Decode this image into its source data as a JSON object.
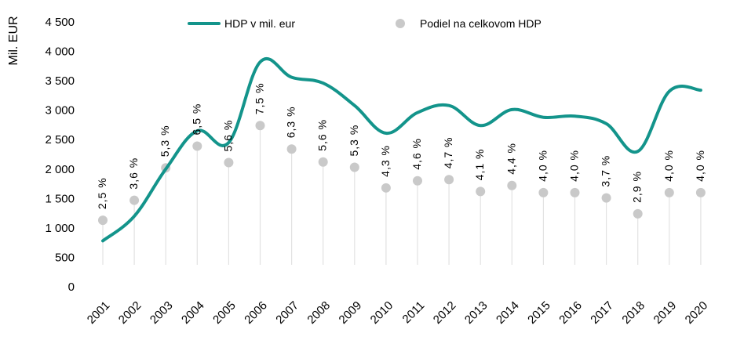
{
  "chart_data": {
    "type": "line",
    "title": "",
    "ylabel": "Mil. EUR",
    "xlabel": "",
    "ylim": [
      0,
      4500
    ],
    "yticks": [
      0,
      500,
      1000,
      1500,
      2000,
      2500,
      3000,
      3500,
      4000,
      4500
    ],
    "ytick_labels": [
      "0",
      "500",
      "1 000",
      "1 500",
      "2 000",
      "2 500",
      "3 000",
      "3 500",
      "4 000",
      "4 500"
    ],
    "categories": [
      "2001",
      "2002",
      "2003",
      "2004",
      "2005",
      "2006",
      "2007",
      "2008",
      "2009",
      "2010",
      "2011",
      "2012",
      "2013",
      "2014",
      "2015",
      "2016",
      "2017",
      "2018",
      "2019",
      "2020"
    ],
    "series": [
      {
        "name": "HDP v mil. eur",
        "kind": "line",
        "color": "#13948B",
        "values": [
          780,
          1200,
          2000,
          2650,
          2450,
          3820,
          3560,
          3460,
          3080,
          2610,
          2960,
          3080,
          2740,
          3010,
          2880,
          2900,
          2770,
          2300,
          3320,
          3340
        ]
      },
      {
        "name": "Podiel na celkovom HDP",
        "kind": "dot",
        "color": "#C9C9C9",
        "values": [
          2.5,
          3.6,
          5.3,
          6.5,
          5.6,
          7.5,
          6.3,
          5.6,
          5.3,
          4.3,
          4.6,
          4.7,
          4.1,
          4.4,
          4.0,
          4.0,
          3.7,
          2.9,
          4.0,
          4.0
        ],
        "labels": [
          "2,5 %",
          "3,6 %",
          "5,3 %",
          "6,5 %",
          "5,6 %",
          "7,5 %",
          "6,3 %",
          "5,6 %",
          "5,3 %",
          "4,3 %",
          "4,6 %",
          "4,7 %",
          "4,1 %",
          "4,4 %",
          "4,0 %",
          "4,0 %",
          "3,7 %",
          "2,9 %",
          "4,0 %",
          "4,0 %"
        ],
        "dot_positions_in_mil_eur": [
          1130,
          1470,
          2020,
          2390,
          2110,
          2740,
          2340,
          2120,
          2030,
          1680,
          1800,
          1820,
          1620,
          1720,
          1600,
          1600,
          1510,
          1240,
          1600,
          1600
        ]
      }
    ],
    "legend": [
      "HDP v mil. eur",
      "Podiel na celkovom HDP"
    ],
    "legend_position": "top",
    "grid": false
  }
}
